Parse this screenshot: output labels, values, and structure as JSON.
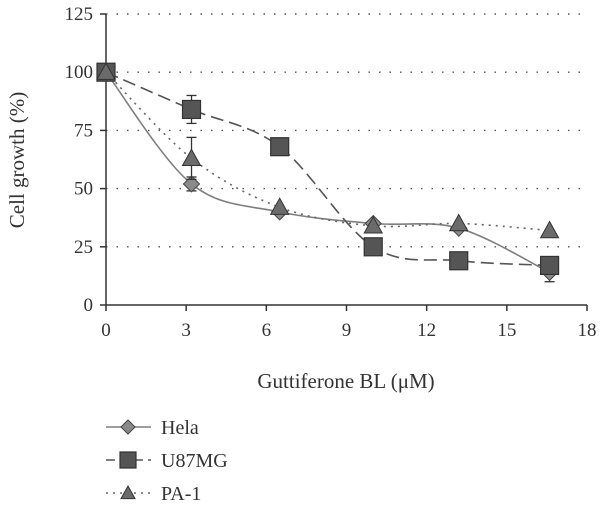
{
  "chart_data": {
    "type": "line",
    "xlabel": "Guttiferone BL (μM)",
    "ylabel": "Cell growth (%)",
    "xlim": [
      0,
      18
    ],
    "ylim": [
      0,
      125
    ],
    "xticks": [
      "0",
      "3",
      "6",
      "9",
      "12",
      "15",
      "18"
    ],
    "yticks": [
      "0",
      "25",
      "50",
      "75",
      "100",
      "125"
    ],
    "grid": "horizontal dotted",
    "legend_position": "bottom-left",
    "series": [
      {
        "name": "Hela",
        "marker": "diamond",
        "line_style": "solid",
        "color": "#7f7f7f",
        "x": [
          0,
          3.2,
          6.5,
          10,
          13.2,
          16.6
        ],
        "y": [
          100,
          52,
          40,
          35,
          33,
          14
        ],
        "error": [
          0,
          3,
          0,
          0,
          0,
          4
        ]
      },
      {
        "name": "U87MG",
        "marker": "square",
        "line_style": "dashed",
        "color": "#555555",
        "x": [
          0,
          3.2,
          6.5,
          10,
          13.2,
          16.6
        ],
        "y": [
          100,
          84,
          68,
          25,
          19,
          17
        ],
        "error": [
          0,
          6,
          0,
          0,
          0,
          0
        ]
      },
      {
        "name": "PA-1",
        "marker": "triangle",
        "line_style": "dotted",
        "color": "#666666",
        "x": [
          0,
          3.2,
          6.5,
          10,
          13.2,
          16.6
        ],
        "y": [
          100,
          63,
          42,
          34,
          35,
          32
        ],
        "error": [
          0,
          9,
          0,
          0,
          0,
          0
        ]
      }
    ]
  }
}
